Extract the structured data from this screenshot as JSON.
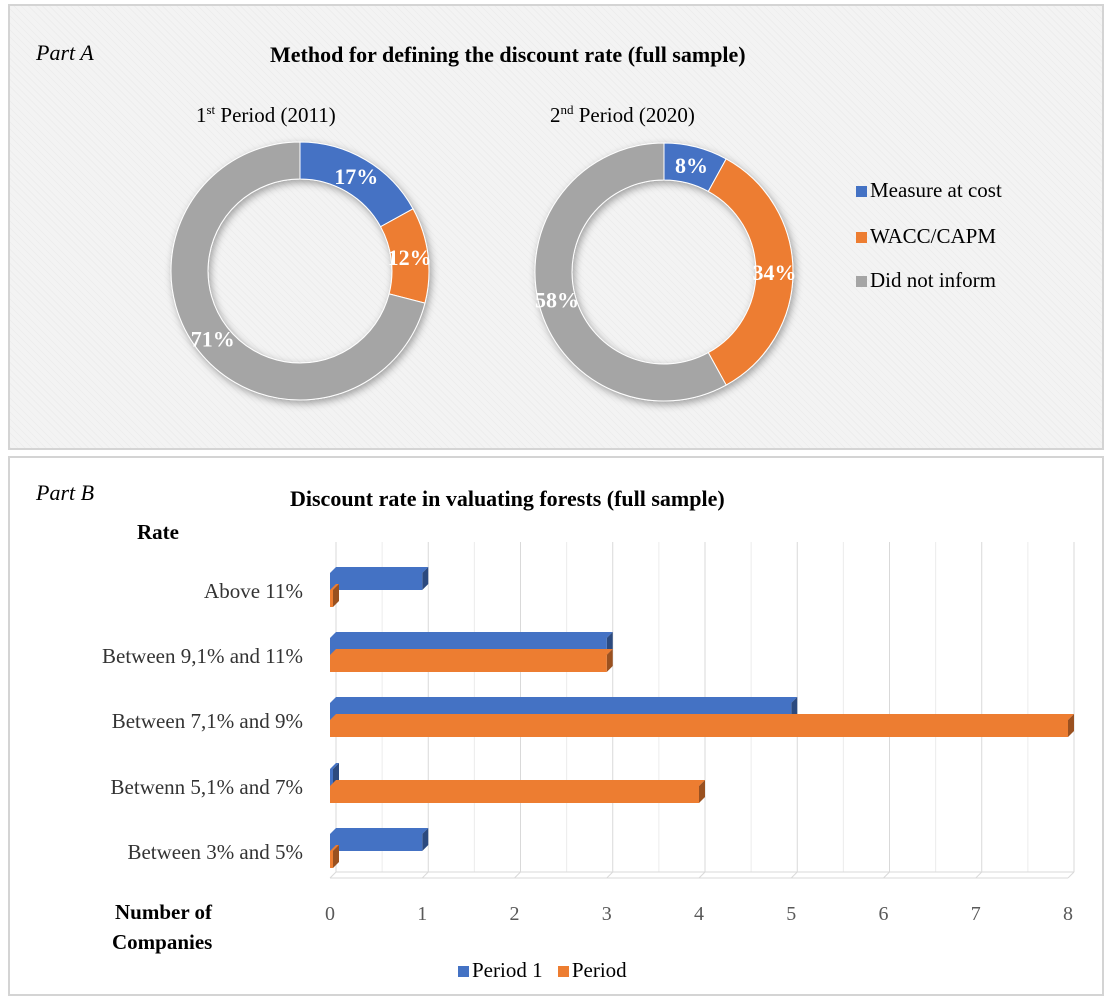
{
  "partA": {
    "tag": "Part A",
    "title": "Method for defining  the discount rate (full sample)",
    "legend": [
      {
        "label": "Measure at cost",
        "color": "#4472C4"
      },
      {
        "label": "WACC/CAPM",
        "color": "#ED7D31"
      },
      {
        "label": "Did not inform",
        "color": "#A5A5A5"
      }
    ]
  },
  "partB": {
    "tag": "Part B",
    "title": "Discount rate in valuating forests (full sample)",
    "ylabel": "Rate",
    "xlabel_line1": "Number of",
    "xlabel_line2": "Companies"
  },
  "chart_data": [
    {
      "type": "pie",
      "variant": "donut",
      "title": "1st Period (2011)",
      "title_prefix": "1",
      "title_sup": "st",
      "title_rest": " Period (2011)",
      "categories": [
        "Measure at cost",
        "WACC/CAPM",
        "Did not inform"
      ],
      "values": [
        17,
        12,
        71
      ],
      "labels": [
        "17%",
        "12%",
        "71%"
      ],
      "colors": [
        "#4472C4",
        "#ED7D31",
        "#A5A5A5"
      ]
    },
    {
      "type": "pie",
      "variant": "donut",
      "title": "2nd Period (2020)",
      "title_prefix": "2",
      "title_sup": "nd",
      "title_rest": " Period (2020)",
      "categories": [
        "Measure at cost",
        "WACC/CAPM",
        "Did not inform"
      ],
      "values": [
        8,
        34,
        58
      ],
      "labels": [
        "8%",
        "34%",
        "58%"
      ],
      "colors": [
        "#4472C4",
        "#ED7D31",
        "#A5A5A5"
      ]
    },
    {
      "type": "bar",
      "orientation": "horizontal",
      "title": "Discount rate in valuating forests (full sample)",
      "categories": [
        "Above 11%",
        "Between 9,1% and 11%",
        "Between 7,1% and 9%",
        "Betwenn 5,1% and 7%",
        "Between 3% and 5%"
      ],
      "series": [
        {
          "name": "Period 1",
          "color": "#4472C4",
          "values": [
            1,
            3,
            5,
            0,
            1
          ]
        },
        {
          "name": "Period",
          "color": "#ED7D31",
          "values": [
            0,
            3,
            8,
            4,
            0
          ]
        }
      ],
      "xticks": [
        "0",
        "1",
        "2",
        "3",
        "4",
        "5",
        "6",
        "7",
        "8"
      ],
      "xlim": [
        0,
        8
      ],
      "xlabel": "Number of Companies",
      "ylabel": "Rate",
      "grid": true,
      "legend_position": "bottom"
    }
  ]
}
